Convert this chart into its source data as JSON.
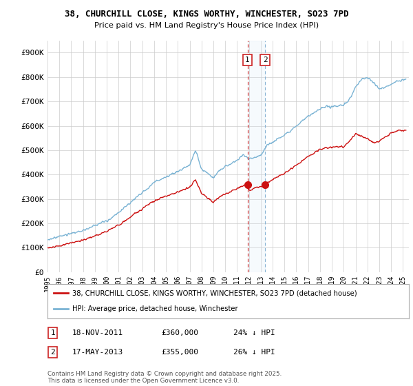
{
  "title": "38, CHURCHILL CLOSE, KINGS WORTHY, WINCHESTER, SO23 7PD",
  "subtitle": "Price paid vs. HM Land Registry's House Price Index (HPI)",
  "ylim": [
    0,
    950000
  ],
  "xlim_start": 1995.0,
  "xlim_end": 2025.5,
  "hpi_color": "#7ab3d4",
  "price_color": "#cc1111",
  "vline1_color": "#cc2222",
  "vline1_style": "--",
  "vline2_color": "#8ab4d4",
  "vline2_style": "--",
  "sale1_date": 2011.88,
  "sale2_date": 2013.37,
  "legend_entry1": "38, CHURCHILL CLOSE, KINGS WORTHY, WINCHESTER, SO23 7PD (detached house)",
  "legend_entry2": "HPI: Average price, detached house, Winchester",
  "table_row1": [
    "1",
    "18-NOV-2011",
    "£360,000",
    "24% ↓ HPI"
  ],
  "table_row2": [
    "2",
    "17-MAY-2013",
    "£355,000",
    "26% ↓ HPI"
  ],
  "footer": "Contains HM Land Registry data © Crown copyright and database right 2025.\nThis data is licensed under the Open Government Licence v3.0.",
  "ytick_labels": [
    "£0",
    "£100K",
    "£200K",
    "£300K",
    "£400K",
    "£500K",
    "£600K",
    "£700K",
    "£800K",
    "£900K"
  ],
  "ytick_values": [
    0,
    100000,
    200000,
    300000,
    400000,
    500000,
    600000,
    700000,
    800000,
    900000
  ],
  "background_color": "#ffffff",
  "grid_color": "#cccccc",
  "span_color": "#d0e4f5",
  "hpi_key_years": [
    1995,
    1996,
    1997,
    1998,
    1999,
    2000,
    2001,
    2002,
    2003,
    2004,
    2005,
    2006,
    2007,
    2007.5,
    2008,
    2009,
    2009.5,
    2010,
    2011,
    2011.5,
    2012,
    2013,
    2013.5,
    2014,
    2015,
    2016,
    2017,
    2018,
    2019,
    2020,
    2020.5,
    2021,
    2021.5,
    2022,
    2022.5,
    2023,
    2023.5,
    2024,
    2024.5,
    2025.25
  ],
  "hpi_key_vals": [
    132000,
    143000,
    158000,
    172000,
    190000,
    210000,
    245000,
    285000,
    325000,
    368000,
    393000,
    415000,
    445000,
    505000,
    430000,
    390000,
    420000,
    435000,
    460000,
    480000,
    465000,
    480000,
    520000,
    535000,
    565000,
    600000,
    640000,
    670000,
    680000,
    685000,
    710000,
    760000,
    790000,
    800000,
    780000,
    750000,
    760000,
    770000,
    785000,
    790000
  ],
  "price_key_years": [
    1995,
    1996,
    1997,
    1998,
    1999,
    2000,
    2001,
    2002,
    2003,
    2004,
    2005,
    2006,
    2007,
    2007.5,
    2008,
    2009,
    2009.5,
    2010,
    2011,
    2011.88,
    2012,
    2013,
    2013.37,
    2014,
    2015,
    2016,
    2017,
    2018,
    2019,
    2020,
    2020.5,
    2021,
    2021.5,
    2022,
    2022.5,
    2023,
    2023.5,
    2024,
    2024.5,
    2025.25
  ],
  "price_key_vals": [
    99000,
    107000,
    120000,
    132000,
    148000,
    165000,
    192000,
    224000,
    256000,
    288000,
    308000,
    325000,
    347000,
    375000,
    320000,
    285000,
    305000,
    318000,
    340000,
    360000,
    333000,
    345000,
    355000,
    375000,
    400000,
    432000,
    468000,
    498000,
    508000,
    512000,
    535000,
    565000,
    555000,
    545000,
    530000,
    535000,
    555000,
    570000,
    578000,
    582000
  ]
}
